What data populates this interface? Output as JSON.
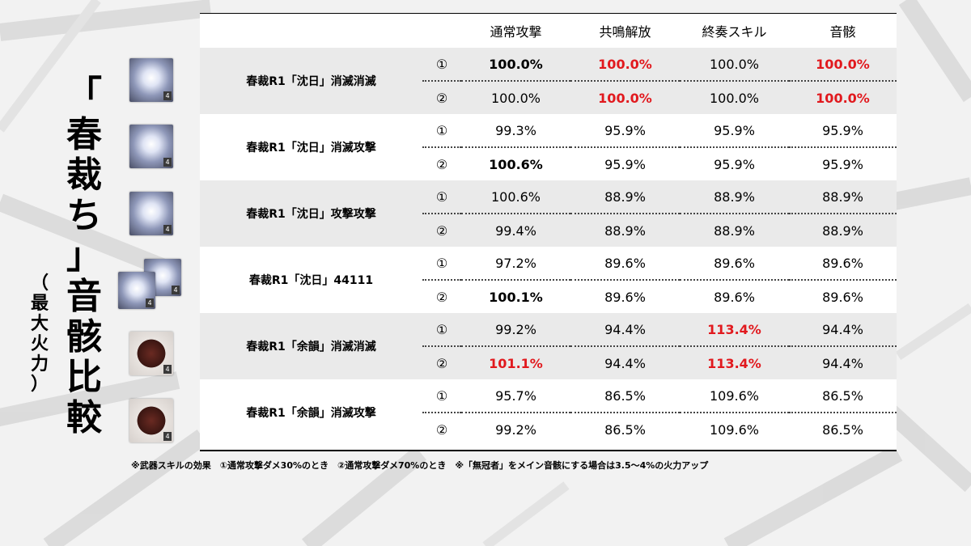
{
  "title_vertical": [
    "「",
    "春",
    "裁",
    "ち",
    "」",
    "音",
    "骸",
    "比",
    "較"
  ],
  "subtitle_vertical": [
    "（",
    "最",
    "大",
    "火",
    "力",
    "）"
  ],
  "columns": [
    "通常攻撃",
    "共鳴解放",
    "終奏スキル",
    "音骸"
  ],
  "rows": [
    {
      "name": "春裁R1「沈日」消滅消滅",
      "shade": true,
      "cases": [
        {
          "idx": "①",
          "cells": [
            {
              "v": "100.0%",
              "s": "b"
            },
            {
              "v": "100.0%",
              "s": "r"
            },
            {
              "v": "100.0%",
              "s": ""
            },
            {
              "v": "100.0%",
              "s": "r"
            }
          ]
        },
        {
          "idx": "②",
          "cells": [
            {
              "v": "100.0%",
              "s": ""
            },
            {
              "v": "100.0%",
              "s": "r"
            },
            {
              "v": "100.0%",
              "s": ""
            },
            {
              "v": "100.0%",
              "s": "r"
            }
          ]
        }
      ]
    },
    {
      "name": "春裁R1「沈日」消滅攻撃",
      "shade": false,
      "cases": [
        {
          "idx": "①",
          "cells": [
            {
              "v": "99.3%",
              "s": ""
            },
            {
              "v": "95.9%",
              "s": ""
            },
            {
              "v": "95.9%",
              "s": ""
            },
            {
              "v": "95.9%",
              "s": ""
            }
          ]
        },
        {
          "idx": "②",
          "cells": [
            {
              "v": "100.6%",
              "s": "b"
            },
            {
              "v": "95.9%",
              "s": ""
            },
            {
              "v": "95.9%",
              "s": ""
            },
            {
              "v": "95.9%",
              "s": ""
            }
          ]
        }
      ]
    },
    {
      "name": "春裁R1「沈日」攻撃攻撃",
      "shade": true,
      "cases": [
        {
          "idx": "①",
          "cells": [
            {
              "v": "100.6%",
              "s": ""
            },
            {
              "v": "88.9%",
              "s": ""
            },
            {
              "v": "88.9%",
              "s": ""
            },
            {
              "v": "88.9%",
              "s": ""
            }
          ]
        },
        {
          "idx": "②",
          "cells": [
            {
              "v": "99.4%",
              "s": ""
            },
            {
              "v": "88.9%",
              "s": ""
            },
            {
              "v": "88.9%",
              "s": ""
            },
            {
              "v": "88.9%",
              "s": ""
            }
          ]
        }
      ]
    },
    {
      "name": "春裁R1「沈日」44111",
      "shade": false,
      "cases": [
        {
          "idx": "①",
          "cells": [
            {
              "v": "97.2%",
              "s": ""
            },
            {
              "v": "89.6%",
              "s": ""
            },
            {
              "v": "89.6%",
              "s": ""
            },
            {
              "v": "89.6%",
              "s": ""
            }
          ]
        },
        {
          "idx": "②",
          "cells": [
            {
              "v": "100.1%",
              "s": "b"
            },
            {
              "v": "89.6%",
              "s": ""
            },
            {
              "v": "89.6%",
              "s": ""
            },
            {
              "v": "89.6%",
              "s": ""
            }
          ]
        }
      ]
    },
    {
      "name": "春裁R1「余韻」消滅消滅",
      "shade": true,
      "cases": [
        {
          "idx": "①",
          "cells": [
            {
              "v": "99.2%",
              "s": ""
            },
            {
              "v": "94.4%",
              "s": ""
            },
            {
              "v": "113.4%",
              "s": "r"
            },
            {
              "v": "94.4%",
              "s": ""
            }
          ]
        },
        {
          "idx": "②",
          "cells": [
            {
              "v": "101.1%",
              "s": "r"
            },
            {
              "v": "94.4%",
              "s": ""
            },
            {
              "v": "113.4%",
              "s": "r"
            },
            {
              "v": "94.4%",
              "s": ""
            }
          ]
        }
      ]
    },
    {
      "name": "春裁R1「余韻」消滅攻撃",
      "shade": false,
      "cases": [
        {
          "idx": "①",
          "cells": [
            {
              "v": "95.7%",
              "s": ""
            },
            {
              "v": "86.5%",
              "s": ""
            },
            {
              "v": "109.6%",
              "s": ""
            },
            {
              "v": "86.5%",
              "s": ""
            }
          ]
        },
        {
          "idx": "②",
          "cells": [
            {
              "v": "99.2%",
              "s": ""
            },
            {
              "v": "86.5%",
              "s": ""
            },
            {
              "v": "109.6%",
              "s": ""
            },
            {
              "v": "86.5%",
              "s": ""
            }
          ]
        }
      ]
    }
  ],
  "icon_badge": "4",
  "icons": [
    {
      "type": "echo-white"
    },
    {
      "type": "echo-white"
    },
    {
      "type": "echo-white"
    },
    {
      "type": "echo-white-double"
    },
    {
      "type": "echo-red"
    },
    {
      "type": "echo-red"
    }
  ],
  "footnote": "※武器スキルの効果　①通常攻撃ダメ30%のとき　②通常攻撃ダメ70%のとき　※「無冠者」をメイン音骸にする場合は3.5～4%の火力アップ",
  "colors": {
    "highlight_red": "#e1191e",
    "row_shade": "#eaeaea",
    "background": "#f2f2f2"
  }
}
